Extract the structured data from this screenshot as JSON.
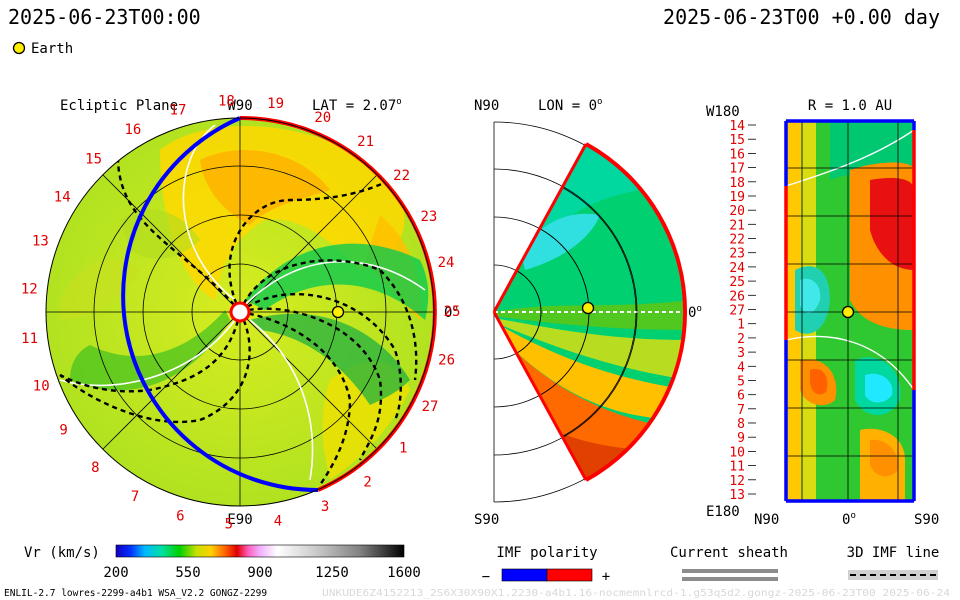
{
  "header": {
    "left_time": "2025-06-23T00:00",
    "right_time": "2025-06-23T00 +0.00 day"
  },
  "legend": {
    "earth_label": "Earth",
    "earth_color": "#ffee00"
  },
  "panels": {
    "ecliptic": {
      "title": "Ecliptic Plane",
      "top_label": "W90",
      "bottom_label": "E90",
      "right_label": "0",
      "lat_label": "LAT = 2.07",
      "carrington_ticks": [
        "20",
        "21",
        "22",
        "23",
        "24",
        "25",
        "26",
        "27",
        "1",
        "2",
        "3",
        "4",
        "5",
        "6",
        "7",
        "8",
        "9",
        "10",
        "11",
        "12",
        "13",
        "14",
        "15",
        "16",
        "17",
        "18",
        "19"
      ]
    },
    "meridional": {
      "top_label": "N90",
      "lon_label": "LON = 0",
      "bottom_label": "S90",
      "right_label": "0"
    },
    "radial": {
      "title": "R = 1.0 AU",
      "top_left_label": "W180",
      "bottom_left_label": "E180",
      "x_labels": [
        "N90",
        "0",
        "S90"
      ],
      "y_labels": [
        "14",
        "15",
        "16",
        "17",
        "18",
        "19",
        "20",
        "21",
        "22",
        "23",
        "24",
        "25",
        "26",
        "27",
        "1",
        "2",
        "3",
        "4",
        "5",
        "6",
        "7",
        "8",
        "9",
        "10",
        "11",
        "12",
        "13"
      ]
    }
  },
  "colorbar": {
    "label": "Vr (km/s)",
    "ticks": [
      "200",
      "550",
      "900",
      "1250",
      "1600"
    ]
  },
  "imf": {
    "title": "IMF polarity",
    "minus": "−",
    "plus": "+",
    "neg_color": "#0000ff",
    "pos_color": "#ff0000"
  },
  "current_sheath": {
    "title": "Current sheath"
  },
  "imf_line": {
    "title": "3D IMF line"
  },
  "footer": {
    "credits": "ENLIL-2.7 lowres-2299-a4b1 WSA_V2.2 GONGZ-2299",
    "run_id": "UNKUDE6Z4152213_2S6X30X90X1.2230-a4b1.16-nocmemnlrcd-1.g53q5d2.gongz-2025-06-23T00 2025-06-24"
  },
  "chart_data": {
    "type": "heatmap",
    "colormap_range": [
      200,
      1600
    ],
    "earth": {
      "lat_deg": 2.07,
      "lon_deg": 0,
      "r_au": 1.0
    }
  }
}
